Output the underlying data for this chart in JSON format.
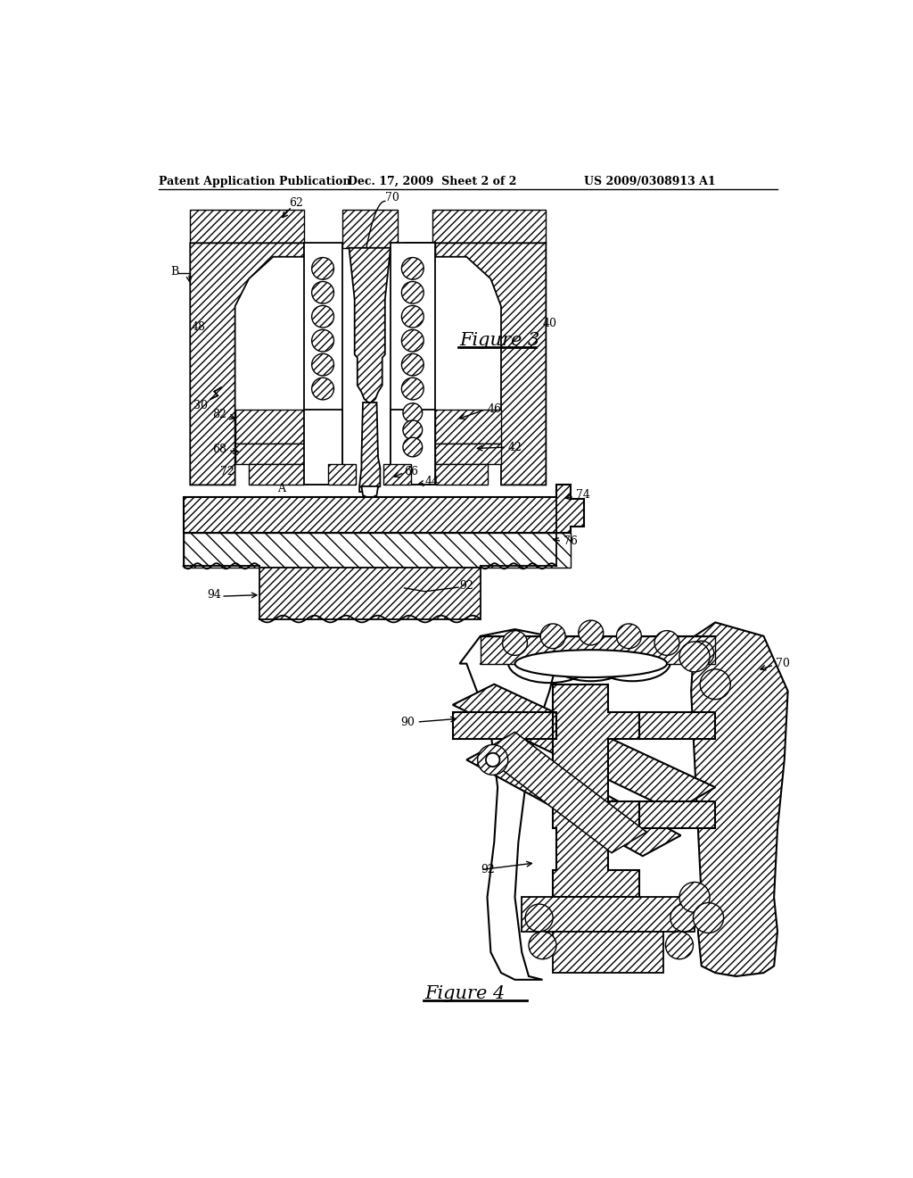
{
  "bg_color": "#ffffff",
  "line_color": "#000000",
  "header_left": "Patent Application Publication",
  "header_mid": "Dec. 17, 2009  Sheet 2 of 2",
  "header_right": "US 2009/0308913 A1",
  "fig3_label": "Figure 3",
  "fig4_label": "Figure 4"
}
